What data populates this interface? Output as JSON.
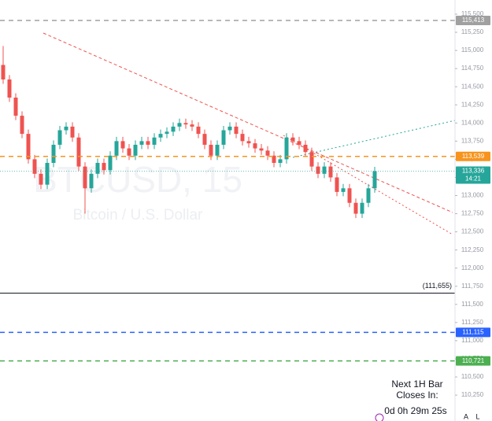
{
  "chart_data": {
    "type": "candlestick",
    "title": "BTCUSD, 15",
    "subtitle": "Bitcoin / U.S. Dollar",
    "open": [
      114800,
      114600,
      114350,
      114100,
      113850,
      113500,
      113300,
      113150,
      113450,
      113700,
      113900,
      113950,
      113800,
      113400,
      113100,
      113300,
      113450,
      113350,
      113550,
      113750,
      113650,
      113550,
      113700,
      113750,
      113700,
      113800,
      113850,
      113880,
      113950,
      114000,
      113980,
      113950,
      113850,
      113700,
      113550,
      113700,
      113900,
      113950,
      113850,
      113750,
      113720,
      113650,
      113620,
      113550,
      113450,
      113500,
      113800,
      113750,
      113700,
      113600,
      113400,
      113300,
      113400,
      113250,
      113050,
      113100,
      112900,
      112750,
      112900,
      113100
    ],
    "high": [
      115060,
      114660,
      114410,
      114160,
      113910,
      113560,
      113360,
      113510,
      113760,
      113960,
      114010,
      114010,
      113860,
      113460,
      113360,
      113510,
      113510,
      113610,
      113810,
      113810,
      113710,
      113760,
      113810,
      113810,
      113860,
      113910,
      113940,
      114010,
      114060,
      114060,
      114040,
      114010,
      113910,
      113760,
      113760,
      113960,
      114010,
      114010,
      113910,
      113810,
      113780,
      113710,
      113680,
      113610,
      113560,
      113860,
      113860,
      113810,
      113760,
      113660,
      113460,
      113460,
      113460,
      113310,
      113160,
      113160,
      112960,
      112960,
      113160,
      113396
    ],
    "low": [
      114540,
      114290,
      114040,
      113790,
      113440,
      113240,
      113090,
      113090,
      113390,
      113640,
      113840,
      113740,
      113340,
      112750,
      113040,
      113240,
      113290,
      113290,
      113490,
      113590,
      113490,
      113490,
      113640,
      113640,
      113640,
      113740,
      113790,
      113820,
      113890,
      113920,
      113890,
      113790,
      113640,
      113490,
      113490,
      113640,
      113840,
      113790,
      113690,
      113660,
      113590,
      113560,
      113490,
      113390,
      113390,
      113440,
      113690,
      113640,
      113540,
      113340,
      113240,
      113240,
      113190,
      112990,
      112990,
      112840,
      112690,
      112690,
      112840,
      113040
    ],
    "close": [
      114600,
      114350,
      114100,
      113850,
      113500,
      113300,
      113150,
      113450,
      113700,
      113900,
      113950,
      113800,
      113400,
      113100,
      113300,
      113450,
      113350,
      113550,
      113750,
      113650,
      113550,
      113700,
      113750,
      113700,
      113800,
      113850,
      113880,
      113950,
      114000,
      113980,
      113950,
      113850,
      113700,
      113550,
      113700,
      113900,
      113950,
      113850,
      113750,
      113720,
      113650,
      113620,
      113550,
      113450,
      113500,
      113800,
      113750,
      113700,
      113600,
      113400,
      113300,
      113400,
      113250,
      113050,
      113100,
      112900,
      112750,
      112900,
      113100,
      113336
    ],
    "up_color": "#26a69a",
    "down_color": "#ef5350",
    "ylim": [
      109893,
      115695
    ],
    "yticks": [
      {
        "value": 115500,
        "label": "115,500"
      },
      {
        "value": 115250,
        "label": "115,250"
      },
      {
        "value": 115000,
        "label": "115,000"
      },
      {
        "value": 114750,
        "label": "114,750"
      },
      {
        "value": 114500,
        "label": "114,500"
      },
      {
        "value": 114250,
        "label": "114,250"
      },
      {
        "value": 114000,
        "label": "114,000"
      },
      {
        "value": 113750,
        "label": "113,750"
      },
      {
        "value": 113500,
        "label": "113,500"
      },
      {
        "value": 113250,
        "label": "113,250"
      },
      {
        "value": 113000,
        "label": "113,000"
      },
      {
        "value": 112750,
        "label": "112,750"
      },
      {
        "value": 112500,
        "label": "112,500"
      },
      {
        "value": 112250,
        "label": "112,250"
      },
      {
        "value": 112000,
        "label": "112,000"
      },
      {
        "value": 111750,
        "label": "111,750"
      },
      {
        "value": 111500,
        "label": "111,500"
      },
      {
        "value": 111250,
        "label": "111,250"
      },
      {
        "value": 111000,
        "label": "111,000"
      },
      {
        "value": 110750,
        "label": "110,750"
      },
      {
        "value": 110500,
        "label": "110,500"
      },
      {
        "value": 110250,
        "label": "110,250"
      }
    ],
    "price_lines": [
      {
        "value": 115413,
        "label": "115,413",
        "color": "#a0a0a0",
        "style": "dashed",
        "label_position": "axis"
      },
      {
        "value": 113539,
        "label": "113,539",
        "color": "#f7941d",
        "style": "dashed",
        "label_position": "axis"
      },
      {
        "value": 111655,
        "label": "(111,655)",
        "color": "#131722",
        "style": "solid",
        "label_position": "inside"
      },
      {
        "value": 111115,
        "label": "111,115",
        "color": "#2962ff",
        "style": "dashed",
        "label_position": "axis"
      },
      {
        "value": 110721,
        "label": "110,721",
        "color": "#4caf50",
        "style": "dashed",
        "label_position": "axis"
      }
    ],
    "last_price": {
      "value": 113336,
      "label": "113,336",
      "countdown": "14:21",
      "color": "#26a69a"
    },
    "bar_countdown": {
      "title_lines": [
        "Next 1H Bar",
        "Closes In:"
      ],
      "time": "0d 0h 29m 25s"
    },
    "axis_buttons": [
      "A",
      "L"
    ]
  }
}
